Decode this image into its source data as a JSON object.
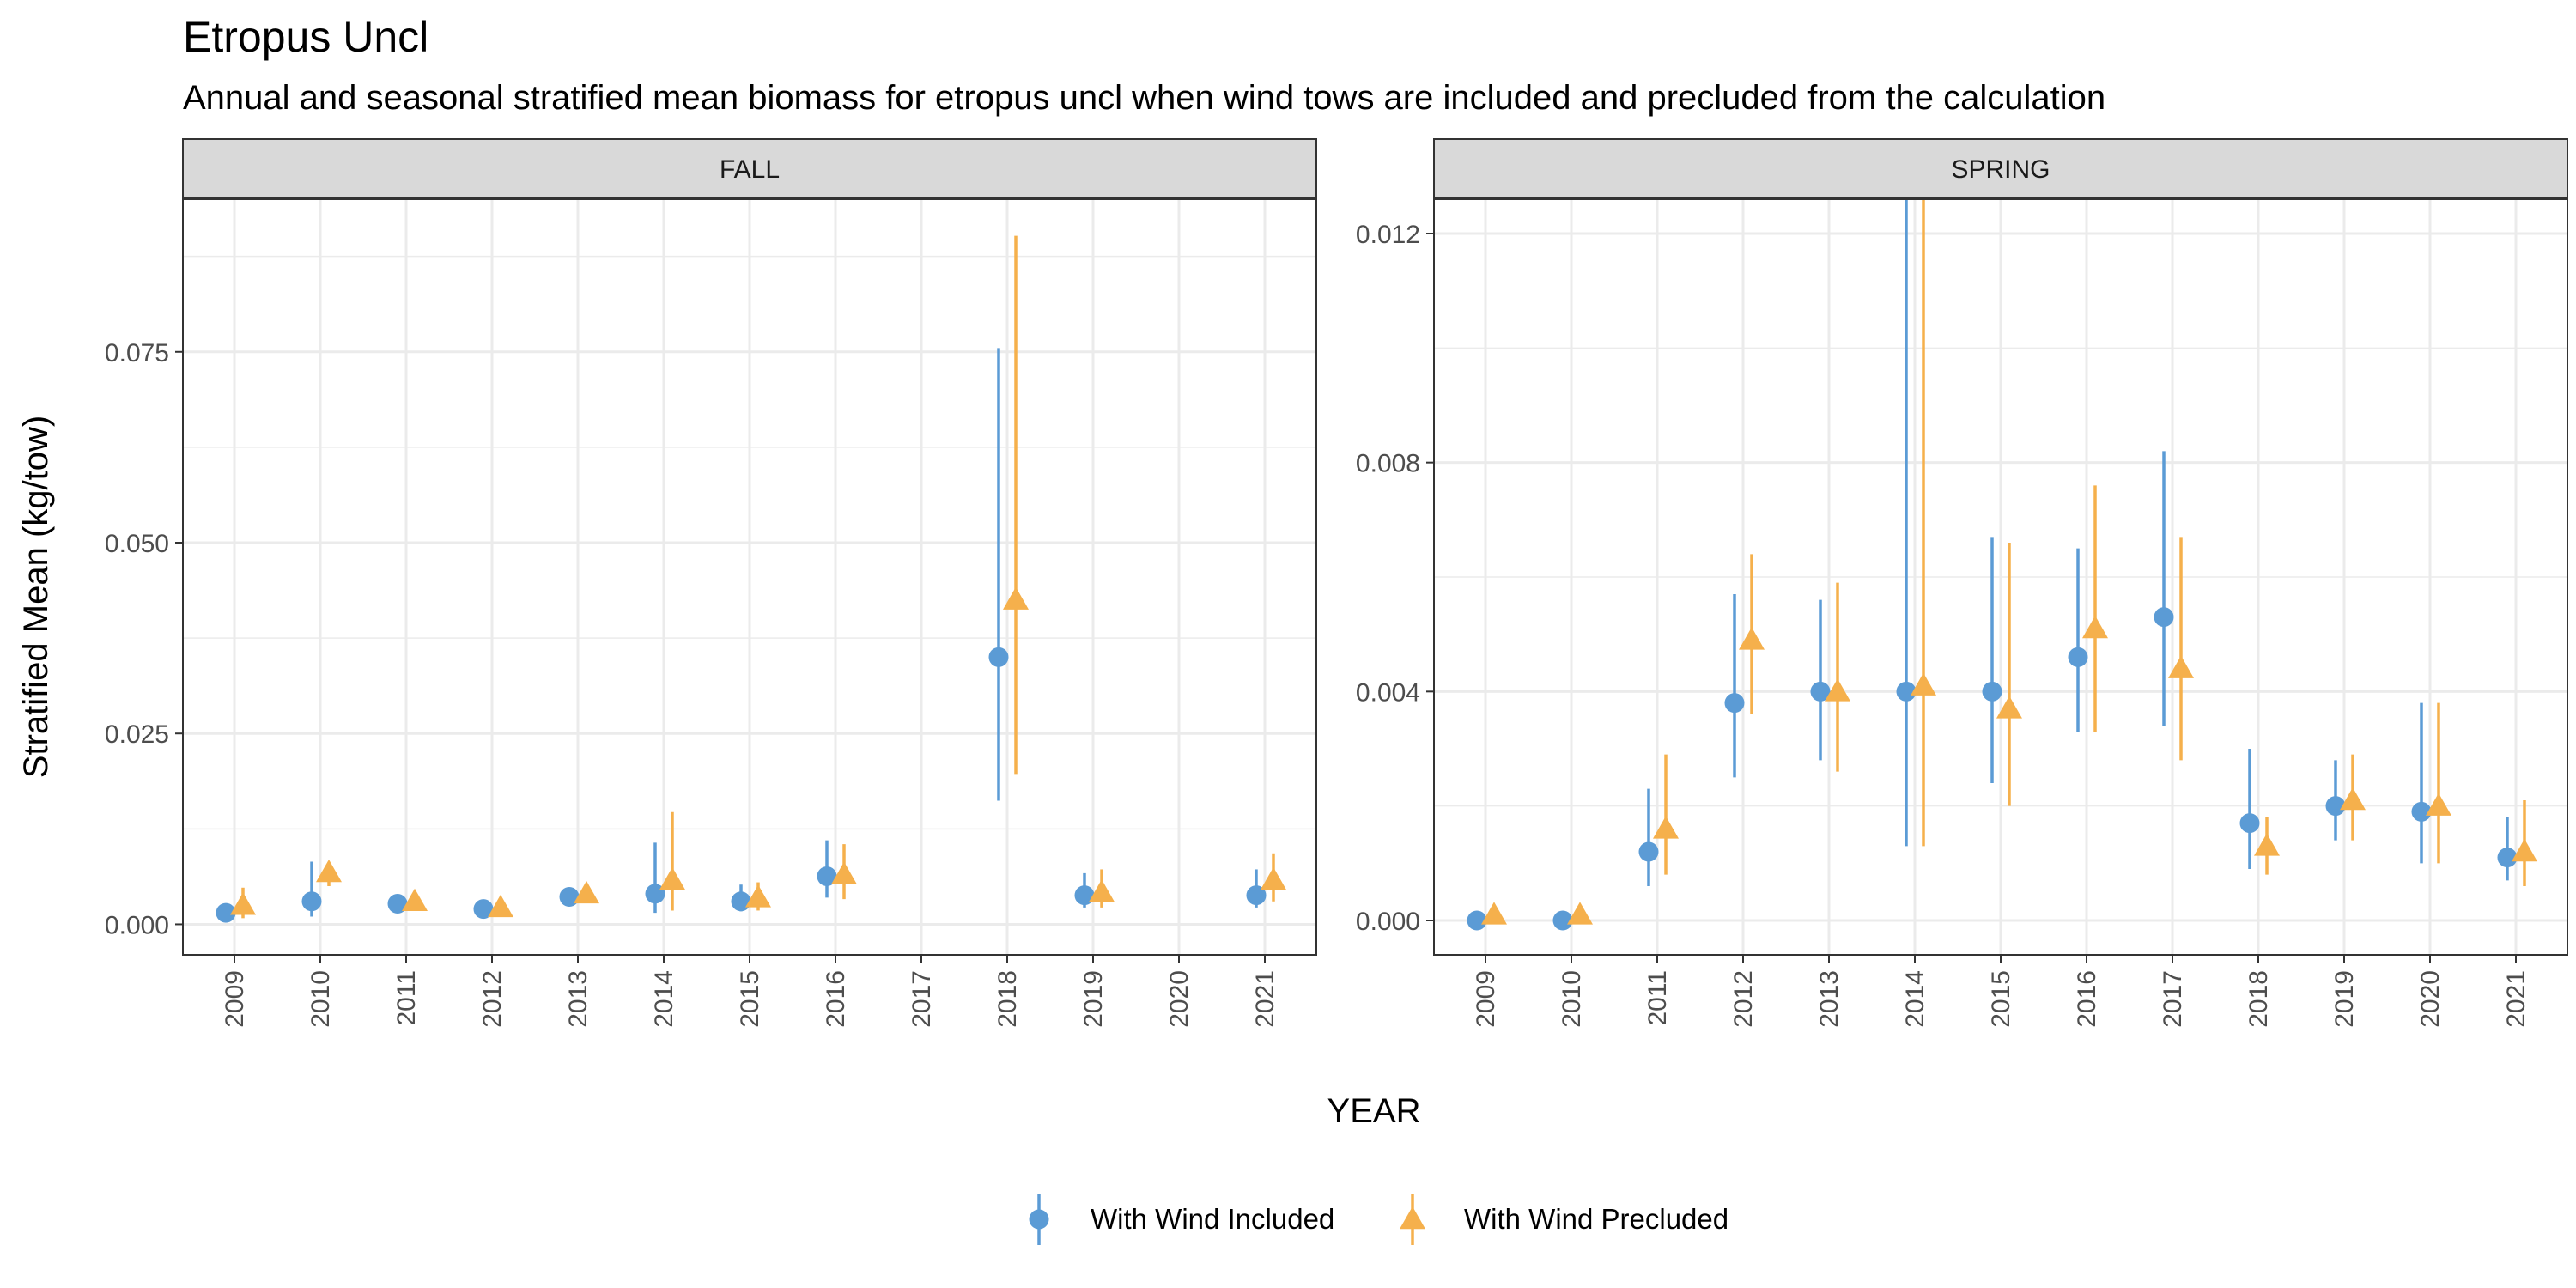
{
  "title": "Etropus Uncl",
  "subtitle": "Annual and seasonal stratified mean biomass for etropus uncl when wind tows are included and precluded from the calculation",
  "colors": {
    "included": "#5B9BD5",
    "precluded": "#F5B04C",
    "strip_bg": "#D9D9D9",
    "grid": "#EBEBEB"
  },
  "chart_data": {
    "type": "scatter",
    "error_bars": true,
    "xlabel": "YEAR",
    "ylabel": "Stratified Mean (kg/tow)",
    "legend_position": "bottom",
    "grid": true,
    "categories": [
      "2009",
      "2010",
      "2011",
      "2012",
      "2013",
      "2014",
      "2015",
      "2016",
      "2017",
      "2018",
      "2019",
      "2020",
      "2021"
    ],
    "legend": [
      {
        "name": "With Wind Included",
        "marker": "circle",
        "color": "#5B9BD5"
      },
      {
        "name": "With Wind Precluded",
        "marker": "triangle",
        "color": "#F5B04C"
      }
    ],
    "panels": [
      {
        "strip": "FALL",
        "ylim": [
          -0.004,
          0.095
        ],
        "yticks": [
          0,
          0.025,
          0.05,
          0.075
        ],
        "yticklabels": [
          "0.000",
          "0.025",
          "0.050",
          "0.075"
        ],
        "series": [
          {
            "name": "With Wind Included",
            "marker": "circle",
            "points": [
              {
                "x": "2009",
                "y": 0.0015,
                "lo": 0.0008,
                "hi": 0.0025
              },
              {
                "x": "2010",
                "y": 0.003,
                "lo": 0.001,
                "hi": 0.0082
              },
              {
                "x": "2011",
                "y": 0.0027,
                "lo": 0.002,
                "hi": 0.0035
              },
              {
                "x": "2012",
                "y": 0.002,
                "lo": 0.0014,
                "hi": 0.0027
              },
              {
                "x": "2013",
                "y": 0.0036,
                "lo": 0.0025,
                "hi": 0.0048
              },
              {
                "x": "2014",
                "y": 0.004,
                "lo": 0.0015,
                "hi": 0.0107
              },
              {
                "x": "2015",
                "y": 0.003,
                "lo": 0.0017,
                "hi": 0.0052
              },
              {
                "x": "2016",
                "y": 0.0063,
                "lo": 0.0035,
                "hi": 0.011
              },
              {
                "x": "2018",
                "y": 0.035,
                "lo": 0.0162,
                "hi": 0.0755
              },
              {
                "x": "2019",
                "y": 0.0038,
                "lo": 0.0022,
                "hi": 0.0067
              },
              {
                "x": "2021",
                "y": 0.0038,
                "lo": 0.0022,
                "hi": 0.0072
              }
            ]
          },
          {
            "name": "With Wind Precluded",
            "marker": "triangle",
            "points": [
              {
                "x": "2009",
                "y": 0.0025,
                "lo": 0.0008,
                "hi": 0.0048
              },
              {
                "x": "2010",
                "y": 0.0068,
                "lo": 0.005,
                "hi": 0.0078
              },
              {
                "x": "2011",
                "y": 0.003,
                "lo": 0.0022,
                "hi": 0.0038
              },
              {
                "x": "2012",
                "y": 0.0022,
                "lo": 0.0015,
                "hi": 0.0028
              },
              {
                "x": "2013",
                "y": 0.004,
                "lo": 0.0028,
                "hi": 0.0052
              },
              {
                "x": "2014",
                "y": 0.0058,
                "lo": 0.0018,
                "hi": 0.0147
              },
              {
                "x": "2015",
                "y": 0.0035,
                "lo": 0.0018,
                "hi": 0.0055
              },
              {
                "x": "2016",
                "y": 0.0065,
                "lo": 0.0033,
                "hi": 0.0105
              },
              {
                "x": "2018",
                "y": 0.0425,
                "lo": 0.0197,
                "hi": 0.0902
              },
              {
                "x": "2019",
                "y": 0.0042,
                "lo": 0.0022,
                "hi": 0.0072
              },
              {
                "x": "2021",
                "y": 0.0058,
                "lo": 0.003,
                "hi": 0.0093
              }
            ]
          }
        ]
      },
      {
        "strip": "SPRING",
        "ylim": [
          -0.0006,
          0.0126
        ],
        "yticks": [
          0,
          0.004,
          0.008,
          0.012
        ],
        "yticklabels": [
          "0.000",
          "0.004",
          "0.008",
          "0.012"
        ],
        "series": [
          {
            "name": "With Wind Included",
            "marker": "circle",
            "points": [
              {
                "x": "2009",
                "y": 0.0,
                "lo": 0.0,
                "hi": 0.0
              },
              {
                "x": "2010",
                "y": 0.0,
                "lo": 0.0,
                "hi": 0.0
              },
              {
                "x": "2011",
                "y": 0.0012,
                "lo": 0.0006,
                "hi": 0.0023
              },
              {
                "x": "2012",
                "y": 0.0038,
                "lo": 0.0025,
                "hi": 0.0057
              },
              {
                "x": "2013",
                "y": 0.004,
                "lo": 0.0028,
                "hi": 0.0056
              },
              {
                "x": "2014",
                "y": 0.004,
                "lo": 0.0013,
                "hi": 0.0126
              },
              {
                "x": "2015",
                "y": 0.004,
                "lo": 0.0024,
                "hi": 0.0067
              },
              {
                "x": "2016",
                "y": 0.0046,
                "lo": 0.0033,
                "hi": 0.0065
              },
              {
                "x": "2017",
                "y": 0.0053,
                "lo": 0.0034,
                "hi": 0.0082
              },
              {
                "x": "2018",
                "y": 0.0017,
                "lo": 0.0009,
                "hi": 0.003
              },
              {
                "x": "2019",
                "y": 0.002,
                "lo": 0.0014,
                "hi": 0.0028
              },
              {
                "x": "2020",
                "y": 0.0019,
                "lo": 0.001,
                "hi": 0.0038
              },
              {
                "x": "2021",
                "y": 0.0011,
                "lo": 0.0007,
                "hi": 0.0018
              }
            ]
          },
          {
            "name": "With Wind Precluded",
            "marker": "triangle",
            "points": [
              {
                "x": "2009",
                "y": 0.0001,
                "lo": 0.0,
                "hi": 0.0001
              },
              {
                "x": "2010",
                "y": 0.0001,
                "lo": 0.0,
                "hi": 0.0001
              },
              {
                "x": "2011",
                "y": 0.0016,
                "lo": 0.0008,
                "hi": 0.0029
              },
              {
                "x": "2012",
                "y": 0.0049,
                "lo": 0.0036,
                "hi": 0.0064
              },
              {
                "x": "2013",
                "y": 0.004,
                "lo": 0.0026,
                "hi": 0.0059
              },
              {
                "x": "2014",
                "y": 0.0041,
                "lo": 0.0013,
                "hi": 0.0126
              },
              {
                "x": "2015",
                "y": 0.0037,
                "lo": 0.002,
                "hi": 0.0066
              },
              {
                "x": "2016",
                "y": 0.0051,
                "lo": 0.0033,
                "hi": 0.0076
              },
              {
                "x": "2017",
                "y": 0.0044,
                "lo": 0.0028,
                "hi": 0.0067
              },
              {
                "x": "2018",
                "y": 0.0013,
                "lo": 0.0008,
                "hi": 0.0018
              },
              {
                "x": "2019",
                "y": 0.0021,
                "lo": 0.0014,
                "hi": 0.0029
              },
              {
                "x": "2020",
                "y": 0.002,
                "lo": 0.001,
                "hi": 0.0038
              },
              {
                "x": "2021",
                "y": 0.0012,
                "lo": 0.0006,
                "hi": 0.0021
              }
            ]
          }
        ]
      }
    ]
  }
}
